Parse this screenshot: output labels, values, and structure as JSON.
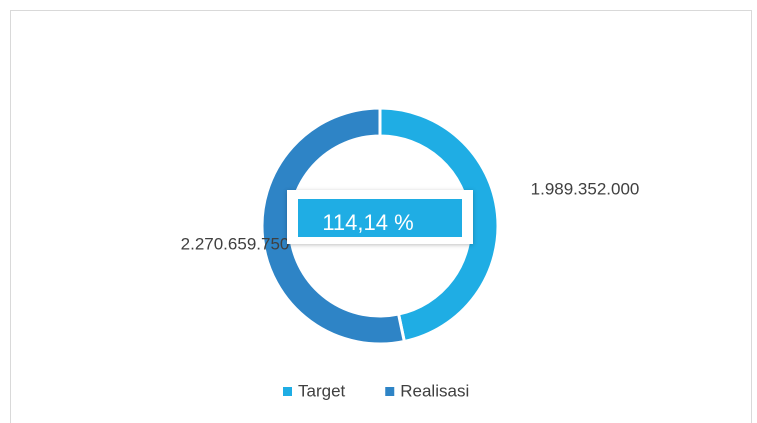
{
  "chart_data": {
    "type": "donut",
    "categories": [
      "Target",
      "Realisasi"
    ],
    "values": [
      1989352000,
      2270659750
    ],
    "value_labels": [
      "1.989.352.000",
      "2.270.659.750"
    ],
    "colors": [
      "#1fade4",
      "#2e84c6"
    ],
    "annotation": "114,14 %",
    "legend": "bottom"
  }
}
